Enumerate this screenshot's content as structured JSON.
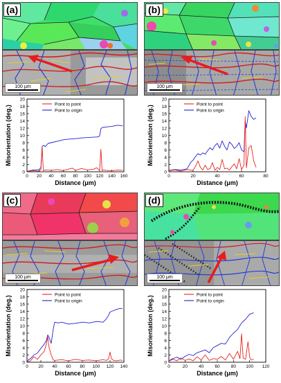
{
  "scale_label": "100 μm",
  "chart_data": [
    {
      "panel": "(a)",
      "type": "line",
      "xlabel": "Distance (μm)",
      "ylabel": "Misorientation (deg.)",
      "xlim": [
        0,
        160
      ],
      "ylim": [
        0,
        20
      ],
      "xticks": [
        0,
        20,
        40,
        60,
        80,
        100,
        120,
        140,
        160
      ],
      "yticks": [
        0,
        2,
        4,
        6,
        8,
        10,
        12,
        14,
        16,
        18,
        20
      ],
      "legend": "top-center",
      "series": [
        {
          "name": "Point to point",
          "color": "#e8231d",
          "x": [
            0,
            10,
            20,
            23,
            25,
            27,
            30,
            40,
            50,
            60,
            70,
            75,
            80,
            90,
            100,
            110,
            115,
            118,
            120,
            122,
            124,
            126,
            130,
            140,
            150,
            158
          ],
          "y": [
            0.1,
            0.3,
            0.2,
            0.5,
            6.8,
            0.3,
            0.5,
            0.4,
            0.6,
            0.3,
            0.8,
            1.0,
            0.4,
            0.9,
            0.5,
            0.7,
            1.1,
            0.6,
            0.4,
            6.2,
            0.3,
            0.5,
            0.4,
            0.3,
            0.5,
            0.4
          ]
        },
        {
          "name": "Point to origin",
          "color": "#1f1fd6",
          "x": [
            0,
            10,
            20,
            23,
            25,
            28,
            30,
            35,
            40,
            50,
            60,
            70,
            80,
            90,
            100,
            110,
            118,
            120,
            122,
            125,
            130,
            140,
            150,
            158
          ],
          "y": [
            0.1,
            0.5,
            0.6,
            1.2,
            7.0,
            7.3,
            6.9,
            7.8,
            8.0,
            8.4,
            8.8,
            9.0,
            9.1,
            9.3,
            9.4,
            9.5,
            9.6,
            9.9,
            11.9,
            12.2,
            12.3,
            12.5,
            12.8,
            12.6
          ]
        }
      ]
    },
    {
      "panel": "(b)",
      "type": "line",
      "xlabel": "Distance (μm)",
      "ylabel": "Misorientation (deg.)",
      "xlim": [
        0,
        80
      ],
      "ylim": [
        0,
        20
      ],
      "xticks": [
        0,
        20,
        40,
        60,
        80
      ],
      "yticks": [
        0,
        2,
        4,
        6,
        8,
        10,
        12,
        14,
        16,
        18,
        20
      ],
      "legend": "top-center",
      "series": [
        {
          "name": "Point to point",
          "color": "#e8231d",
          "x": [
            0,
            5,
            10,
            15,
            20,
            22,
            24,
            26,
            28,
            30,
            32,
            34,
            36,
            38,
            40,
            42,
            44,
            46,
            48,
            50,
            52,
            54,
            56,
            58,
            60,
            62,
            63,
            64,
            66,
            68,
            70,
            72
          ],
          "y": [
            0.3,
            0.5,
            0.2,
            0.6,
            0.4,
            1.5,
            3.0,
            1.2,
            0.5,
            1.8,
            0.6,
            0.9,
            2.5,
            0.4,
            1.2,
            0.6,
            3.4,
            0.8,
            1.0,
            0.5,
            1.4,
            2.2,
            0.8,
            3.6,
            0.6,
            1.8,
            15.2,
            1.1,
            6.6,
            7.2,
            3.0,
            1.2
          ]
        },
        {
          "name": "Point to origin",
          "color": "#1f1fd6",
          "x": [
            0,
            5,
            10,
            15,
            18,
            20,
            22,
            24,
            26,
            28,
            30,
            32,
            34,
            36,
            38,
            40,
            42,
            44,
            46,
            48,
            50,
            52,
            54,
            56,
            58,
            60,
            62,
            63,
            64,
            66,
            68,
            70,
            72
          ],
          "y": [
            0.4,
            0.6,
            0.5,
            0.8,
            2.6,
            3.2,
            4.2,
            5.0,
            4.6,
            5.2,
            4.8,
            5.8,
            6.6,
            6.0,
            7.2,
            7.8,
            6.5,
            8.5,
            7.0,
            6.0,
            8.2,
            7.5,
            6.4,
            7.0,
            8.0,
            6.0,
            5.5,
            14.0,
            12.0,
            16.8,
            15.2,
            14.4,
            14.8
          ]
        }
      ]
    },
    {
      "panel": "(c)",
      "type": "line",
      "xlabel": "Distance (μm)",
      "ylabel": "Misorientation (deg.)",
      "xlim": [
        0,
        140
      ],
      "ylim": [
        0,
        20
      ],
      "xticks": [
        0,
        20,
        40,
        60,
        80,
        100,
        120,
        140
      ],
      "yticks": [
        0,
        2,
        4,
        6,
        8,
        10,
        12,
        14,
        16,
        18,
        20
      ],
      "legend": "top-center",
      "series": [
        {
          "name": "Point to point",
          "color": "#e8231d",
          "x": [
            0,
            5,
            10,
            15,
            20,
            25,
            28,
            30,
            32,
            35,
            38,
            40,
            50,
            60,
            70,
            80,
            90,
            100,
            110,
            115,
            118,
            120,
            122,
            125,
            130,
            135,
            138
          ],
          "y": [
            0.2,
            0.4,
            1.5,
            0.8,
            2.0,
            3.0,
            5.0,
            7.0,
            4.0,
            2.0,
            0.6,
            0.5,
            0.7,
            0.4,
            0.8,
            0.5,
            0.6,
            0.4,
            0.7,
            0.5,
            1.0,
            2.8,
            1.0,
            0.5,
            0.4,
            0.6,
            0.5
          ]
        },
        {
          "name": "Point to origin",
          "color": "#1f1fd6",
          "x": [
            0,
            5,
            10,
            15,
            20,
            25,
            28,
            30,
            32,
            35,
            38,
            40,
            45,
            50,
            60,
            70,
            80,
            90,
            100,
            110,
            115,
            118,
            120,
            125,
            130,
            135,
            138
          ],
          "y": [
            0.4,
            1.0,
            2.0,
            2.5,
            3.8,
            5.0,
            6.0,
            7.5,
            6.8,
            5.2,
            9.2,
            11.0,
            10.8,
            11.0,
            10.5,
            10.7,
            11.0,
            10.8,
            11.2,
            11.0,
            12.0,
            13.0,
            13.8,
            14.2,
            14.6,
            14.8,
            14.7
          ]
        }
      ]
    },
    {
      "panel": "(d)",
      "type": "line",
      "xlabel": "Distance (μm)",
      "ylabel": "Misorientation (deg.)",
      "xlim": [
        0,
        120
      ],
      "ylim": [
        0,
        20
      ],
      "xticks": [
        0,
        20,
        40,
        60,
        80,
        100,
        120
      ],
      "yticks": [
        0,
        2,
        4,
        6,
        8,
        10,
        12,
        14,
        16,
        18,
        20
      ],
      "legend": "top-center",
      "series": [
        {
          "name": "Point to point",
          "color": "#e8231d",
          "x": [
            0,
            5,
            10,
            15,
            20,
            25,
            30,
            35,
            40,
            45,
            50,
            55,
            60,
            65,
            70,
            75,
            80,
            85,
            88,
            90,
            92,
            95,
            98,
            100,
            102,
            105
          ],
          "y": [
            0.3,
            0.8,
            0.4,
            1.2,
            0.5,
            0.9,
            0.4,
            1.5,
            0.6,
            2.0,
            0.5,
            1.0,
            0.8,
            1.6,
            0.6,
            2.4,
            0.8,
            3.0,
            1.0,
            7.8,
            1.2,
            0.8,
            5.6,
            1.4,
            0.6,
            0.8
          ]
        },
        {
          "name": "Point to origin",
          "color": "#1f1fd6",
          "x": [
            0,
            5,
            10,
            15,
            20,
            25,
            30,
            35,
            40,
            45,
            50,
            55,
            60,
            65,
            70,
            75,
            80,
            85,
            90,
            95,
            100,
            105
          ],
          "y": [
            0.4,
            1.0,
            1.4,
            0.8,
            1.6,
            2.2,
            1.8,
            2.6,
            3.0,
            3.4,
            2.6,
            4.0,
            4.6,
            5.2,
            5.0,
            6.8,
            8.0,
            9.0,
            10.8,
            11.8,
            13.2,
            13.6
          ]
        }
      ]
    }
  ]
}
